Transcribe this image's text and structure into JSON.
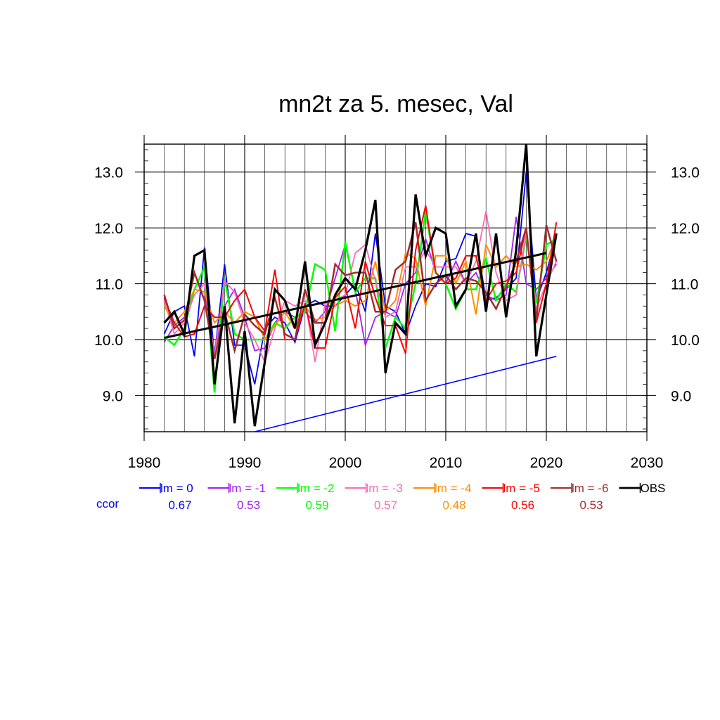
{
  "chart_data": {
    "type": "line",
    "title": "mn2t za 5. mesec, Val",
    "xlabel": "",
    "ylabel": "",
    "xlim": [
      1980,
      2030
    ],
    "ylim": [
      8.35,
      13.5
    ],
    "x_ticks": [
      1980,
      1990,
      2000,
      2010,
      2020,
      2030
    ],
    "y_ticks": [
      9.0,
      10.0,
      11.0,
      12.0,
      13.0
    ],
    "x_tick_labels": [
      "1980",
      "1990",
      "2000",
      "2010",
      "2020",
      "2030"
    ],
    "y_tick_labels": [
      "9.0",
      "10.0",
      "11.0",
      "12.0",
      "13.0"
    ],
    "grid": true,
    "years": [
      1982,
      1983,
      1984,
      1985,
      1986,
      1987,
      1988,
      1989,
      1990,
      1991,
      1992,
      1993,
      1994,
      1995,
      1996,
      1997,
      1998,
      1999,
      2000,
      2001,
      2002,
      2003,
      2004,
      2005,
      2006,
      2007,
      2008,
      2009,
      2010,
      2011,
      2012,
      2013,
      2014,
      2015,
      2016,
      2017,
      2018,
      2019,
      2020,
      2021
    ],
    "series": [
      {
        "name": "lm = 0",
        "color": "#0000ff",
        "width": 1.8,
        "ccor": "0.67",
        "values": [
          10.1,
          10.5,
          10.6,
          9.7,
          11.65,
          9.7,
          11.35,
          9.9,
          9.9,
          9.2,
          10.2,
          10.4,
          10.3,
          9.95,
          10.6,
          10.7,
          10.6,
          10.6,
          10.8,
          11.0,
          10.5,
          11.9,
          10.6,
          10.5,
          10.1,
          10.6,
          11.0,
          10.95,
          11.4,
          11.45,
          11.9,
          11.85,
          10.7,
          10.75,
          10.9,
          11.1,
          13.0,
          10.7,
          11.2,
          11.85
        ]
      },
      {
        "name": "lm = -1",
        "color": "#a020f0",
        "width": 1.8,
        "ccor": "0.53",
        "values": [
          9.95,
          10.25,
          10.4,
          10.9,
          10.85,
          9.8,
          10.6,
          10.9,
          10.4,
          9.8,
          9.85,
          10.3,
          10.5,
          10.4,
          10.5,
          10.3,
          10.5,
          11.1,
          11.7,
          10.9,
          9.9,
          10.4,
          10.5,
          10.4,
          11.0,
          11.2,
          11.8,
          11.2,
          11.0,
          11.4,
          11.0,
          11.2,
          10.8,
          10.7,
          10.8,
          12.2,
          11.0,
          10.9,
          11.1,
          11.35
        ]
      },
      {
        "name": "lm = -2",
        "color": "#00ff00",
        "width": 2.5,
        "ccor": "0.59",
        "values": [
          10.05,
          9.9,
          10.2,
          10.9,
          11.3,
          9.05,
          11.1,
          10.1,
          10.0,
          10.0,
          10.0,
          10.3,
          10.2,
          10.4,
          10.5,
          11.35,
          11.25,
          10.15,
          11.75,
          10.85,
          11.1,
          11.1,
          9.85,
          10.4,
          10.2,
          11.0,
          12.3,
          11.2,
          11.0,
          10.55,
          10.9,
          10.9,
          11.45,
          10.7,
          11.0,
          10.85,
          11.85,
          10.65,
          11.7,
          11.8
        ]
      },
      {
        "name": "lm = -3",
        "color": "#ff69b4",
        "width": 1.8,
        "ccor": "0.57",
        "values": [
          10.7,
          10.1,
          10.3,
          10.8,
          11.0,
          9.7,
          11.05,
          10.85,
          10.3,
          10.0,
          9.6,
          10.2,
          10.7,
          10.6,
          10.7,
          9.6,
          10.65,
          10.7,
          10.8,
          11.55,
          11.7,
          11.05,
          10.4,
          10.5,
          11.3,
          11.3,
          11.6,
          11.3,
          11.3,
          11.3,
          11.0,
          11.4,
          12.3,
          11.2,
          10.7,
          10.8,
          11.9,
          10.55,
          11.0,
          11.4
        ]
      },
      {
        "name": "lm = -4",
        "color": "#ff8c00",
        "width": 2.0,
        "ccor": "0.48",
        "values": [
          10.6,
          10.3,
          10.5,
          10.9,
          10.85,
          10.3,
          10.5,
          10.3,
          10.5,
          10.4,
          10.0,
          10.25,
          10.5,
          10.2,
          10.6,
          10.35,
          10.4,
          10.6,
          10.7,
          10.6,
          10.7,
          11.4,
          10.5,
          10.7,
          11.55,
          11.45,
          10.6,
          11.5,
          11.5,
          11.0,
          11.4,
          10.45,
          11.7,
          11.3,
          11.5,
          11.3,
          11.35,
          11.25,
          11.4,
          11.85
        ]
      },
      {
        "name": "lm = -5",
        "color": "#ff0000",
        "width": 2.0,
        "ccor": "0.56",
        "values": [
          10.75,
          10.3,
          10.05,
          10.1,
          10.6,
          10.4,
          10.4,
          10.7,
          10.9,
          10.4,
          10.15,
          11.25,
          10.0,
          10.0,
          10.65,
          9.85,
          9.85,
          10.75,
          10.95,
          10.2,
          11.4,
          10.75,
          10.25,
          10.25,
          9.75,
          11.6,
          12.4,
          11.2,
          11.0,
          11.1,
          11.5,
          11.5,
          10.7,
          11.0,
          11.05,
          11.2,
          12.0,
          10.3,
          11.0,
          12.1
        ]
      },
      {
        "name": "lm = -6",
        "color": "#a52a2a",
        "width": 2.5,
        "ccor": "0.53",
        "values": [
          10.8,
          10.2,
          10.35,
          11.2,
          10.7,
          9.65,
          10.5,
          9.8,
          10.45,
          10.25,
          10.1,
          10.75,
          10.1,
          10.0,
          10.9,
          10.3,
          10.3,
          11.35,
          11.15,
          11.2,
          11.2,
          10.5,
          10.5,
          11.25,
          11.4,
          12.1,
          10.7,
          11.0,
          11.15,
          10.9,
          11.1,
          11.05,
          10.85,
          10.55,
          10.95,
          11.4,
          12.0,
          10.35,
          12.05,
          11.4
        ]
      },
      {
        "name": "OBS",
        "color": "#000000",
        "width": 3.2,
        "ccor": "",
        "values": [
          10.3,
          10.5,
          10.1,
          11.5,
          11.6,
          9.2,
          10.6,
          8.5,
          10.15,
          8.45,
          9.6,
          10.9,
          10.7,
          10.2,
          11.4,
          9.9,
          10.3,
          10.8,
          11.1,
          10.9,
          11.6,
          12.5,
          9.4,
          10.3,
          10.1,
          12.6,
          11.5,
          12.0,
          11.9,
          10.6,
          10.9,
          11.9,
          10.5,
          11.9,
          10.4,
          11.6,
          13.5,
          9.7,
          10.8,
          11.9
        ]
      }
    ],
    "trend_obs": {
      "color": "#000000",
      "x": [
        1982,
        2020
      ],
      "y": [
        10.03,
        11.55
      ]
    },
    "trend_extra": {
      "color": "#0000ff",
      "x": [
        1991,
        2021
      ],
      "y": [
        8.35,
        9.7
      ]
    }
  },
  "legend": {
    "ccor_label": "ccor",
    "ccor_color": "#0000ff"
  }
}
